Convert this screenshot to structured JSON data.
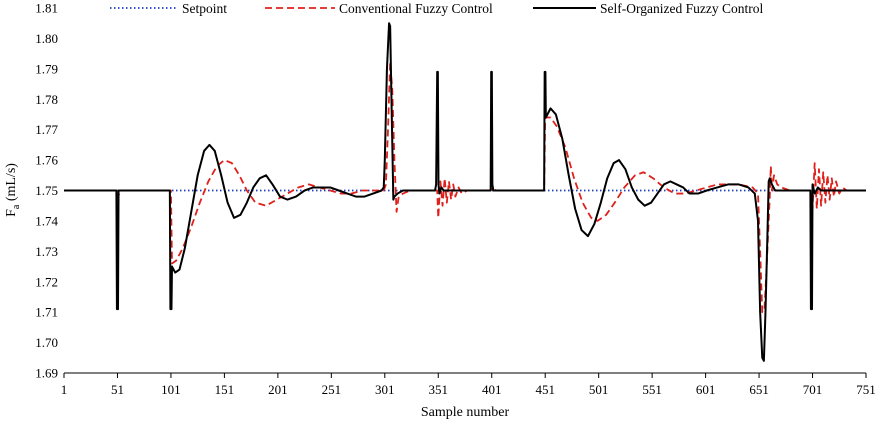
{
  "chart_data": {
    "type": "line",
    "xlabel": "Sample number",
    "ylabel": {
      "main": "F",
      "sub": "a",
      "unit": " (mL/s)"
    },
    "xlim": [
      1,
      751
    ],
    "ylim": [
      1.69,
      1.81
    ],
    "xticks": [
      1,
      51,
      101,
      151,
      201,
      251,
      301,
      351,
      401,
      451,
      501,
      551,
      601,
      651,
      701,
      751
    ],
    "yticks": [
      1.69,
      1.7,
      1.71,
      1.72,
      1.73,
      1.74,
      1.75,
      1.76,
      1.77,
      1.78,
      1.79,
      1.8,
      1.81
    ],
    "grid": false,
    "legend_position": "top",
    "series": [
      {
        "name": "Setpoint",
        "color": "#1f3fbf",
        "style": "dotted",
        "points": [
          [
            1,
            1.75
          ],
          [
            751,
            1.75
          ]
        ]
      },
      {
        "name": "Conventional Fuzzy Control",
        "color": "#e0201b",
        "style": "dashed",
        "points": [
          [
            1,
            1.75
          ],
          [
            50,
            1.75
          ],
          [
            51,
            1.748
          ],
          [
            53,
            1.749
          ],
          [
            56,
            1.75
          ],
          [
            101,
            1.75
          ],
          [
            102,
            1.726
          ],
          [
            106,
            1.727
          ],
          [
            112,
            1.731
          ],
          [
            120,
            1.738
          ],
          [
            128,
            1.746
          ],
          [
            136,
            1.753
          ],
          [
            144,
            1.758
          ],
          [
            151,
            1.76
          ],
          [
            158,
            1.759
          ],
          [
            165,
            1.755
          ],
          [
            172,
            1.75
          ],
          [
            180,
            1.746
          ],
          [
            190,
            1.745
          ],
          [
            200,
            1.747
          ],
          [
            210,
            1.749
          ],
          [
            220,
            1.751
          ],
          [
            230,
            1.752
          ],
          [
            240,
            1.751
          ],
          [
            250,
            1.75
          ],
          [
            260,
            1.749
          ],
          [
            270,
            1.749
          ],
          [
            280,
            1.75
          ],
          [
            290,
            1.75
          ],
          [
            300,
            1.75
          ],
          [
            302,
            1.752
          ],
          [
            304,
            1.77
          ],
          [
            306,
            1.792
          ],
          [
            308,
            1.783
          ],
          [
            310,
            1.76
          ],
          [
            312,
            1.743
          ],
          [
            314,
            1.748
          ],
          [
            318,
            1.749
          ],
          [
            325,
            1.75
          ],
          [
            350,
            1.75
          ],
          [
            351,
            1.741
          ],
          [
            353,
            1.753
          ],
          [
            355,
            1.745
          ],
          [
            357,
            1.754
          ],
          [
            359,
            1.746
          ],
          [
            361,
            1.753
          ],
          [
            363,
            1.747
          ],
          [
            365,
            1.752
          ],
          [
            367,
            1.748
          ],
          [
            370,
            1.751
          ],
          [
            373,
            1.749
          ],
          [
            378,
            1.75
          ],
          [
            400,
            1.75
          ],
          [
            402,
            1.751
          ],
          [
            405,
            1.75
          ],
          [
            450,
            1.75
          ],
          [
            451,
            1.774
          ],
          [
            456,
            1.774
          ],
          [
            462,
            1.771
          ],
          [
            470,
            1.764
          ],
          [
            478,
            1.754
          ],
          [
            486,
            1.746
          ],
          [
            494,
            1.741
          ],
          [
            500,
            1.74
          ],
          [
            508,
            1.742
          ],
          [
            516,
            1.746
          ],
          [
            525,
            1.751
          ],
          [
            535,
            1.755
          ],
          [
            543,
            1.756
          ],
          [
            552,
            1.754
          ],
          [
            562,
            1.751
          ],
          [
            572,
            1.749
          ],
          [
            582,
            1.749
          ],
          [
            592,
            1.75
          ],
          [
            602,
            1.751
          ],
          [
            612,
            1.752
          ],
          [
            622,
            1.752
          ],
          [
            632,
            1.752
          ],
          [
            645,
            1.751
          ],
          [
            650,
            1.749
          ],
          [
            652,
            1.73
          ],
          [
            654,
            1.71
          ],
          [
            656,
            1.711
          ],
          [
            658,
            1.724
          ],
          [
            660,
            1.74
          ],
          [
            661,
            1.748
          ],
          [
            662,
            1.758
          ],
          [
            663,
            1.75
          ],
          [
            665,
            1.755
          ],
          [
            668,
            1.752
          ],
          [
            672,
            1.751
          ],
          [
            680,
            1.75
          ],
          [
            700,
            1.75
          ],
          [
            701,
            1.744
          ],
          [
            703,
            1.759
          ],
          [
            705,
            1.744
          ],
          [
            707,
            1.757
          ],
          [
            709,
            1.745
          ],
          [
            711,
            1.756
          ],
          [
            713,
            1.746
          ],
          [
            715,
            1.755
          ],
          [
            717,
            1.747
          ],
          [
            719,
            1.754
          ],
          [
            721,
            1.748
          ],
          [
            723,
            1.753
          ],
          [
            726,
            1.749
          ],
          [
            729,
            1.751
          ],
          [
            733,
            1.75
          ],
          [
            751,
            1.75
          ]
        ]
      },
      {
        "name": "Self-Organized Fuzzy Control",
        "color": "#000000",
        "style": "solid",
        "points": [
          [
            1,
            1.75
          ],
          [
            50,
            1.75
          ],
          [
            50.5,
            1.711
          ],
          [
            51.5,
            1.711
          ],
          [
            52,
            1.75
          ],
          [
            100,
            1.75
          ],
          [
            100.5,
            1.711
          ],
          [
            101.5,
            1.711
          ],
          [
            102,
            1.725
          ],
          [
            105,
            1.723
          ],
          [
            109,
            1.724
          ],
          [
            114,
            1.731
          ],
          [
            120,
            1.743
          ],
          [
            126,
            1.755
          ],
          [
            132,
            1.763
          ],
          [
            137,
            1.765
          ],
          [
            142,
            1.763
          ],
          [
            148,
            1.755
          ],
          [
            154,
            1.746
          ],
          [
            160,
            1.741
          ],
          [
            166,
            1.742
          ],
          [
            172,
            1.746
          ],
          [
            178,
            1.751
          ],
          [
            184,
            1.754
          ],
          [
            190,
            1.755
          ],
          [
            196,
            1.752
          ],
          [
            203,
            1.748
          ],
          [
            210,
            1.747
          ],
          [
            218,
            1.748
          ],
          [
            226,
            1.75
          ],
          [
            234,
            1.751
          ],
          [
            242,
            1.751
          ],
          [
            250,
            1.751
          ],
          [
            258,
            1.75
          ],
          [
            266,
            1.749
          ],
          [
            274,
            1.748
          ],
          [
            282,
            1.748
          ],
          [
            290,
            1.749
          ],
          [
            298,
            1.75
          ],
          [
            300,
            1.751
          ],
          [
            301,
            1.76
          ],
          [
            303,
            1.79
          ],
          [
            305,
            1.805
          ],
          [
            306,
            1.804
          ],
          [
            307.5,
            1.775
          ],
          [
            309,
            1.747
          ],
          [
            310,
            1.748
          ],
          [
            313,
            1.749
          ],
          [
            318,
            1.75
          ],
          [
            348,
            1.75
          ],
          [
            349,
            1.752
          ],
          [
            350,
            1.789
          ],
          [
            350.6,
            1.789
          ],
          [
            351.2,
            1.752
          ],
          [
            352,
            1.749
          ],
          [
            354,
            1.751
          ],
          [
            356,
            1.75
          ],
          [
            400,
            1.75
          ],
          [
            400.5,
            1.789
          ],
          [
            401.1,
            1.789
          ],
          [
            401.6,
            1.752
          ],
          [
            402.5,
            1.75
          ],
          [
            450,
            1.75
          ],
          [
            450.5,
            1.789
          ],
          [
            451.2,
            1.789
          ],
          [
            451.6,
            1.774
          ],
          [
            456,
            1.777
          ],
          [
            461,
            1.775
          ],
          [
            467,
            1.767
          ],
          [
            473,
            1.755
          ],
          [
            479,
            1.744
          ],
          [
            485,
            1.737
          ],
          [
            491,
            1.735
          ],
          [
            497,
            1.739
          ],
          [
            503,
            1.746
          ],
          [
            509,
            1.754
          ],
          [
            515,
            1.759
          ],
          [
            520,
            1.76
          ],
          [
            526,
            1.757
          ],
          [
            532,
            1.751
          ],
          [
            538,
            1.747
          ],
          [
            544,
            1.745
          ],
          [
            550,
            1.746
          ],
          [
            556,
            1.749
          ],
          [
            562,
            1.752
          ],
          [
            568,
            1.753
          ],
          [
            574,
            1.752
          ],
          [
            580,
            1.751
          ],
          [
            586,
            1.749
          ],
          [
            594,
            1.749
          ],
          [
            602,
            1.75
          ],
          [
            612,
            1.751
          ],
          [
            622,
            1.752
          ],
          [
            632,
            1.752
          ],
          [
            641,
            1.751
          ],
          [
            647,
            1.749
          ],
          [
            650,
            1.74
          ],
          [
            652,
            1.71
          ],
          [
            654,
            1.695
          ],
          [
            655.5,
            1.694
          ],
          [
            657,
            1.71
          ],
          [
            659,
            1.738
          ],
          [
            660,
            1.753
          ],
          [
            661,
            1.754
          ],
          [
            663,
            1.752
          ],
          [
            666,
            1.75
          ],
          [
            699,
            1.75
          ],
          [
            699.5,
            1.711
          ],
          [
            700.5,
            1.711
          ],
          [
            701,
            1.752
          ],
          [
            703,
            1.749
          ],
          [
            706,
            1.751
          ],
          [
            709,
            1.75
          ],
          [
            751,
            1.75
          ]
        ]
      }
    ]
  }
}
